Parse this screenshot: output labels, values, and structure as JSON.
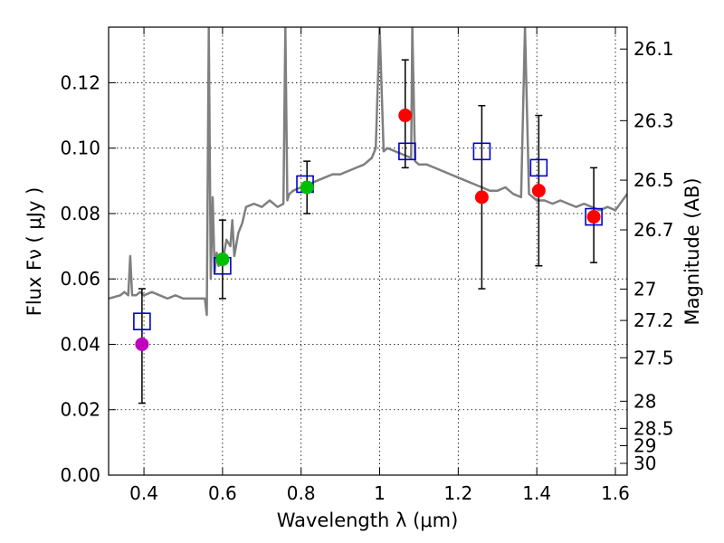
{
  "chart_data": {
    "type": "scatter",
    "title": "",
    "xlabel": "Wavelength  λ (μm)",
    "ylabel": "Flux  Fν  ( μJy )",
    "ylabel_right": "Magnitude (AB)",
    "xlim": [
      0.31,
      1.63
    ],
    "ylim": [
      0.0,
      0.137
    ],
    "grid": true,
    "x_ticks": [
      0.4,
      0.6,
      0.8,
      1.0,
      1.2,
      1.4,
      1.6
    ],
    "x_tick_labels": [
      "0.4",
      "0.6",
      "0.8",
      "1",
      "1.2",
      "1.4",
      "1.6"
    ],
    "y_ticks": [
      0.0,
      0.02,
      0.04,
      0.06,
      0.08,
      0.1,
      0.12
    ],
    "y_tick_labels": [
      "0.00",
      "0.02",
      "0.04",
      "0.06",
      "0.08",
      "0.10",
      "0.12"
    ],
    "right_ticks": [
      {
        "label": "26.1",
        "flux": 0.1303
      },
      {
        "label": "26.3",
        "flux": 0.1084
      },
      {
        "label": "26.5",
        "flux": 0.0902
      },
      {
        "label": "26.7",
        "flux": 0.075
      },
      {
        "label": "27",
        "flux": 0.0569
      },
      {
        "label": "27.2",
        "flux": 0.0473
      },
      {
        "label": "27.5",
        "flux": 0.0359
      },
      {
        "label": "28",
        "flux": 0.0226
      },
      {
        "label": "28.5",
        "flux": 0.0143
      },
      {
        "label": "29",
        "flux": 0.009
      },
      {
        "label": "30",
        "flux": 0.0036
      }
    ],
    "model_spectrum": {
      "color": "#7f7f7f",
      "x": [
        0.31,
        0.34,
        0.35,
        0.36,
        0.365,
        0.37,
        0.38,
        0.39,
        0.4,
        0.42,
        0.44,
        0.46,
        0.48,
        0.5,
        0.52,
        0.54,
        0.555,
        0.56,
        0.565,
        0.57,
        0.575,
        0.58,
        0.585,
        0.59,
        0.6,
        0.61,
        0.62,
        0.625,
        0.63,
        0.64,
        0.65,
        0.66,
        0.68,
        0.7,
        0.72,
        0.74,
        0.755,
        0.76,
        0.765,
        0.77,
        0.78,
        0.8,
        0.82,
        0.84,
        0.86,
        0.88,
        0.9,
        0.92,
        0.94,
        0.96,
        0.98,
        0.99,
        1.0,
        1.01,
        1.02,
        1.04,
        1.06,
        1.08,
        1.083,
        1.09,
        1.1,
        1.12,
        1.14,
        1.16,
        1.18,
        1.2,
        1.22,
        1.24,
        1.26,
        1.28,
        1.3,
        1.32,
        1.34,
        1.36,
        1.37,
        1.38,
        1.4,
        1.42,
        1.44,
        1.46,
        1.48,
        1.5,
        1.52,
        1.54,
        1.56,
        1.58,
        1.6,
        1.63
      ],
      "y": [
        0.054,
        0.055,
        0.056,
        0.055,
        0.067,
        0.055,
        0.055,
        0.056,
        0.055,
        0.056,
        0.055,
        0.054,
        0.055,
        0.054,
        0.054,
        0.054,
        0.054,
        0.049,
        0.137,
        0.06,
        0.085,
        0.062,
        0.068,
        0.064,
        0.065,
        0.072,
        0.07,
        0.078,
        0.067,
        0.074,
        0.077,
        0.082,
        0.083,
        0.082,
        0.084,
        0.082,
        0.083,
        0.137,
        0.084,
        0.086,
        0.087,
        0.088,
        0.089,
        0.09,
        0.091,
        0.092,
        0.092,
        0.093,
        0.094,
        0.095,
        0.097,
        0.1,
        0.137,
        0.099,
        0.1,
        0.099,
        0.098,
        0.097,
        0.137,
        0.096,
        0.095,
        0.095,
        0.094,
        0.093,
        0.092,
        0.091,
        0.09,
        0.089,
        0.088,
        0.087,
        0.087,
        0.088,
        0.086,
        0.085,
        0.137,
        0.086,
        0.084,
        0.084,
        0.083,
        0.084,
        0.083,
        0.082,
        0.083,
        0.082,
        0.081,
        0.082,
        0.081,
        0.086
      ]
    },
    "series": [
      {
        "marker": "square",
        "color": "#0000cc",
        "x": [
          0.395,
          0.6,
          0.81,
          1.07,
          1.26,
          1.405,
          1.545
        ],
        "y": [
          0.047,
          0.064,
          0.089,
          0.099,
          0.099,
          0.094,
          0.079
        ]
      },
      {
        "marker": "circle",
        "color": "#bf00bf",
        "x": [
          0.395
        ],
        "y": [
          0.04
        ],
        "yerr_low": [
          0.022
        ],
        "yerr_high": [
          0.057
        ]
      },
      {
        "marker": "circle",
        "color": "#00bf00",
        "x": [
          0.6,
          0.815
        ],
        "y": [
          0.066,
          0.088
        ],
        "yerr_low": [
          0.054,
          0.08
        ],
        "yerr_high": [
          0.078,
          0.096
        ]
      },
      {
        "marker": "circle",
        "color": "#ff0000",
        "x": [
          1.065,
          1.26,
          1.405,
          1.545
        ],
        "y": [
          0.11,
          0.085,
          0.087,
          0.079
        ],
        "yerr_low": [
          0.094,
          0.057,
          0.064,
          0.065
        ],
        "yerr_high": [
          0.127,
          0.113,
          0.11,
          0.094
        ]
      }
    ]
  }
}
